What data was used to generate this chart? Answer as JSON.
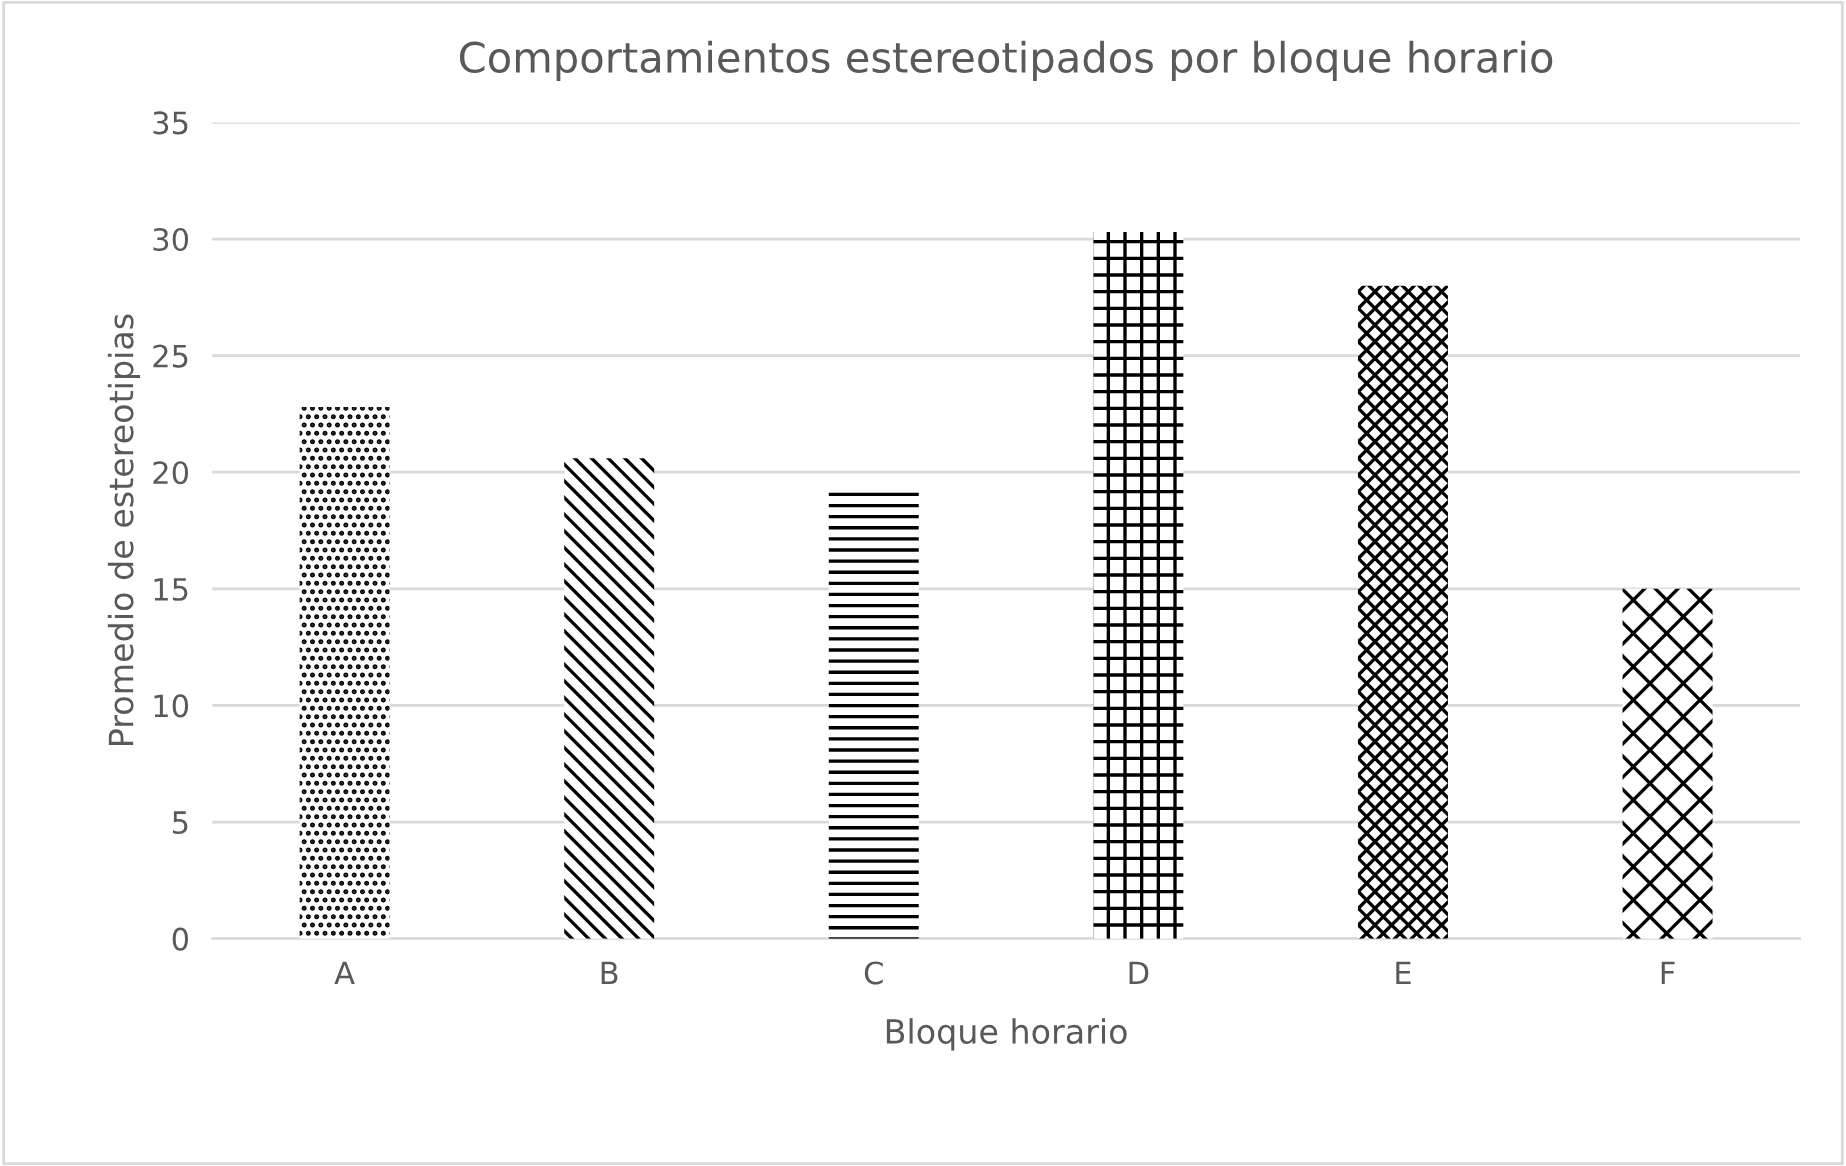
{
  "chart_data": {
    "type": "bar",
    "title": "Comportamientos estereotipados por bloque horario",
    "xlabel": "Bloque horario",
    "ylabel": "Promedio de estereotipias",
    "categories": [
      "A",
      "B",
      "C",
      "D",
      "E",
      "F"
    ],
    "values": [
      22.8,
      20.6,
      19.4,
      30.3,
      28.0,
      15.0
    ],
    "color": "#000000",
    "ylim": [
      0,
      35
    ],
    "yticks": [
      0,
      5,
      10,
      15,
      20,
      25,
      30,
      35
    ],
    "grid": "y"
  }
}
